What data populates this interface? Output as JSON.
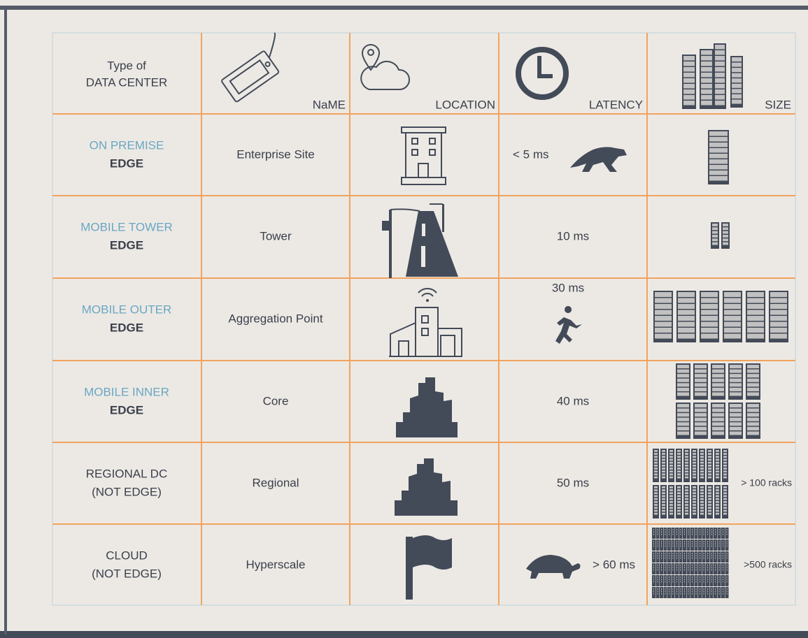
{
  "table": {
    "header": {
      "type": [
        "Type of",
        "DATA CENTER"
      ],
      "name": "NaME",
      "location": "LOCATION",
      "latency": "LATENCY",
      "size": "SIZE"
    },
    "rows": [
      {
        "type": [
          "ON PREMISE",
          "EDGE"
        ],
        "name": "Enterprise Site",
        "latency": "< 5 ms"
      },
      {
        "type": [
          "MOBILE TOWER",
          "EDGE"
        ],
        "name": "Tower",
        "latency": "10 ms"
      },
      {
        "type": [
          "MOBILE OUTER",
          "EDGE"
        ],
        "name": "Aggregation Point",
        "latency": "30 ms"
      },
      {
        "type": [
          "MOBILE INNER",
          "EDGE"
        ],
        "name": "Core",
        "latency": "40 ms"
      },
      {
        "type": [
          "REGIONAL DC",
          "(NOT EDGE)"
        ],
        "name": "Regional",
        "latency": "50 ms",
        "size": "> 100 racks"
      },
      {
        "type": [
          "CLOUD",
          "(NOT EDGE)"
        ],
        "name": "Hyperscale",
        "latency": "> 60 ms",
        "size": ">500 racks"
      }
    ]
  }
}
